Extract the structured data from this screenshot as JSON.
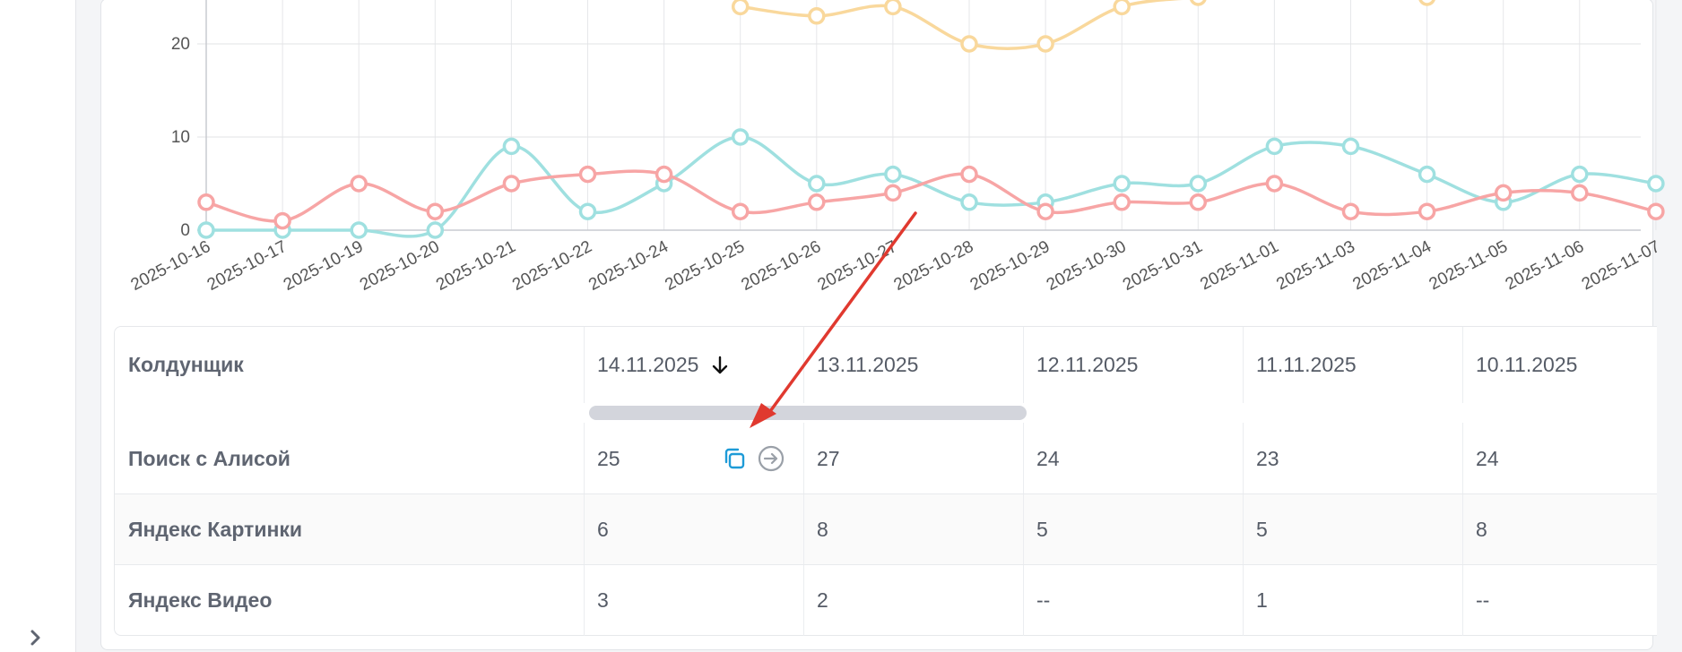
{
  "chart_data": {
    "type": "line",
    "categories": [
      "2025-10-16",
      "2025-10-17",
      "2025-10-19",
      "2025-10-20",
      "2025-10-21",
      "2025-10-22",
      "2025-10-24",
      "2025-10-25",
      "2025-10-26",
      "2025-10-27",
      "2025-10-28",
      "2025-10-29",
      "2025-10-30",
      "2025-10-31",
      "2025-11-01",
      "2025-11-03",
      "2025-11-04",
      "2025-11-05",
      "2025-11-06",
      "2025-11-07"
    ],
    "y_ticks": [
      "0",
      "10",
      "20"
    ],
    "ylim": [
      0,
      27
    ],
    "series": [
      {
        "color": "#f9d89c",
        "values": [
          null,
          null,
          null,
          null,
          null,
          null,
          null,
          24,
          23,
          24,
          20,
          20,
          24,
          25,
          null,
          null,
          25,
          null,
          null,
          null
        ]
      },
      {
        "color": "#9fe0e0",
        "values": [
          0,
          0,
          0,
          0,
          9,
          2,
          5,
          10,
          5,
          6,
          3,
          3,
          5,
          5,
          9,
          9,
          6,
          3,
          6,
          5
        ]
      },
      {
        "color": "#f7a5a5",
        "values": [
          3,
          1,
          5,
          2,
          5,
          6,
          6,
          2,
          3,
          4,
          6,
          2,
          3,
          3,
          5,
          2,
          2,
          4,
          4,
          2
        ]
      }
    ],
    "grid": true
  },
  "table": {
    "header_label": "Колдунщик",
    "dates": [
      "14.11.2025",
      "13.11.2025",
      "12.11.2025",
      "11.11.2025",
      "10.11.2025"
    ],
    "sort_indicator": "↓",
    "rows": [
      {
        "label": "Поиск с Алисой",
        "values": [
          "25",
          "27",
          "24",
          "23",
          "24"
        ]
      },
      {
        "label": "Яндекс Картинки",
        "values": [
          "6",
          "8",
          "5",
          "5",
          "8"
        ]
      },
      {
        "label": "Яндекс Видео",
        "values": [
          "3",
          "2",
          "--",
          "1",
          "--"
        ]
      }
    ]
  },
  "icons": {
    "copy": "copy-icon",
    "forward": "arrow-right-circle-icon",
    "expand": "chevron-right-icon"
  },
  "colors": {
    "accent": "#1e9bd7",
    "annotation": "#e0392f"
  }
}
